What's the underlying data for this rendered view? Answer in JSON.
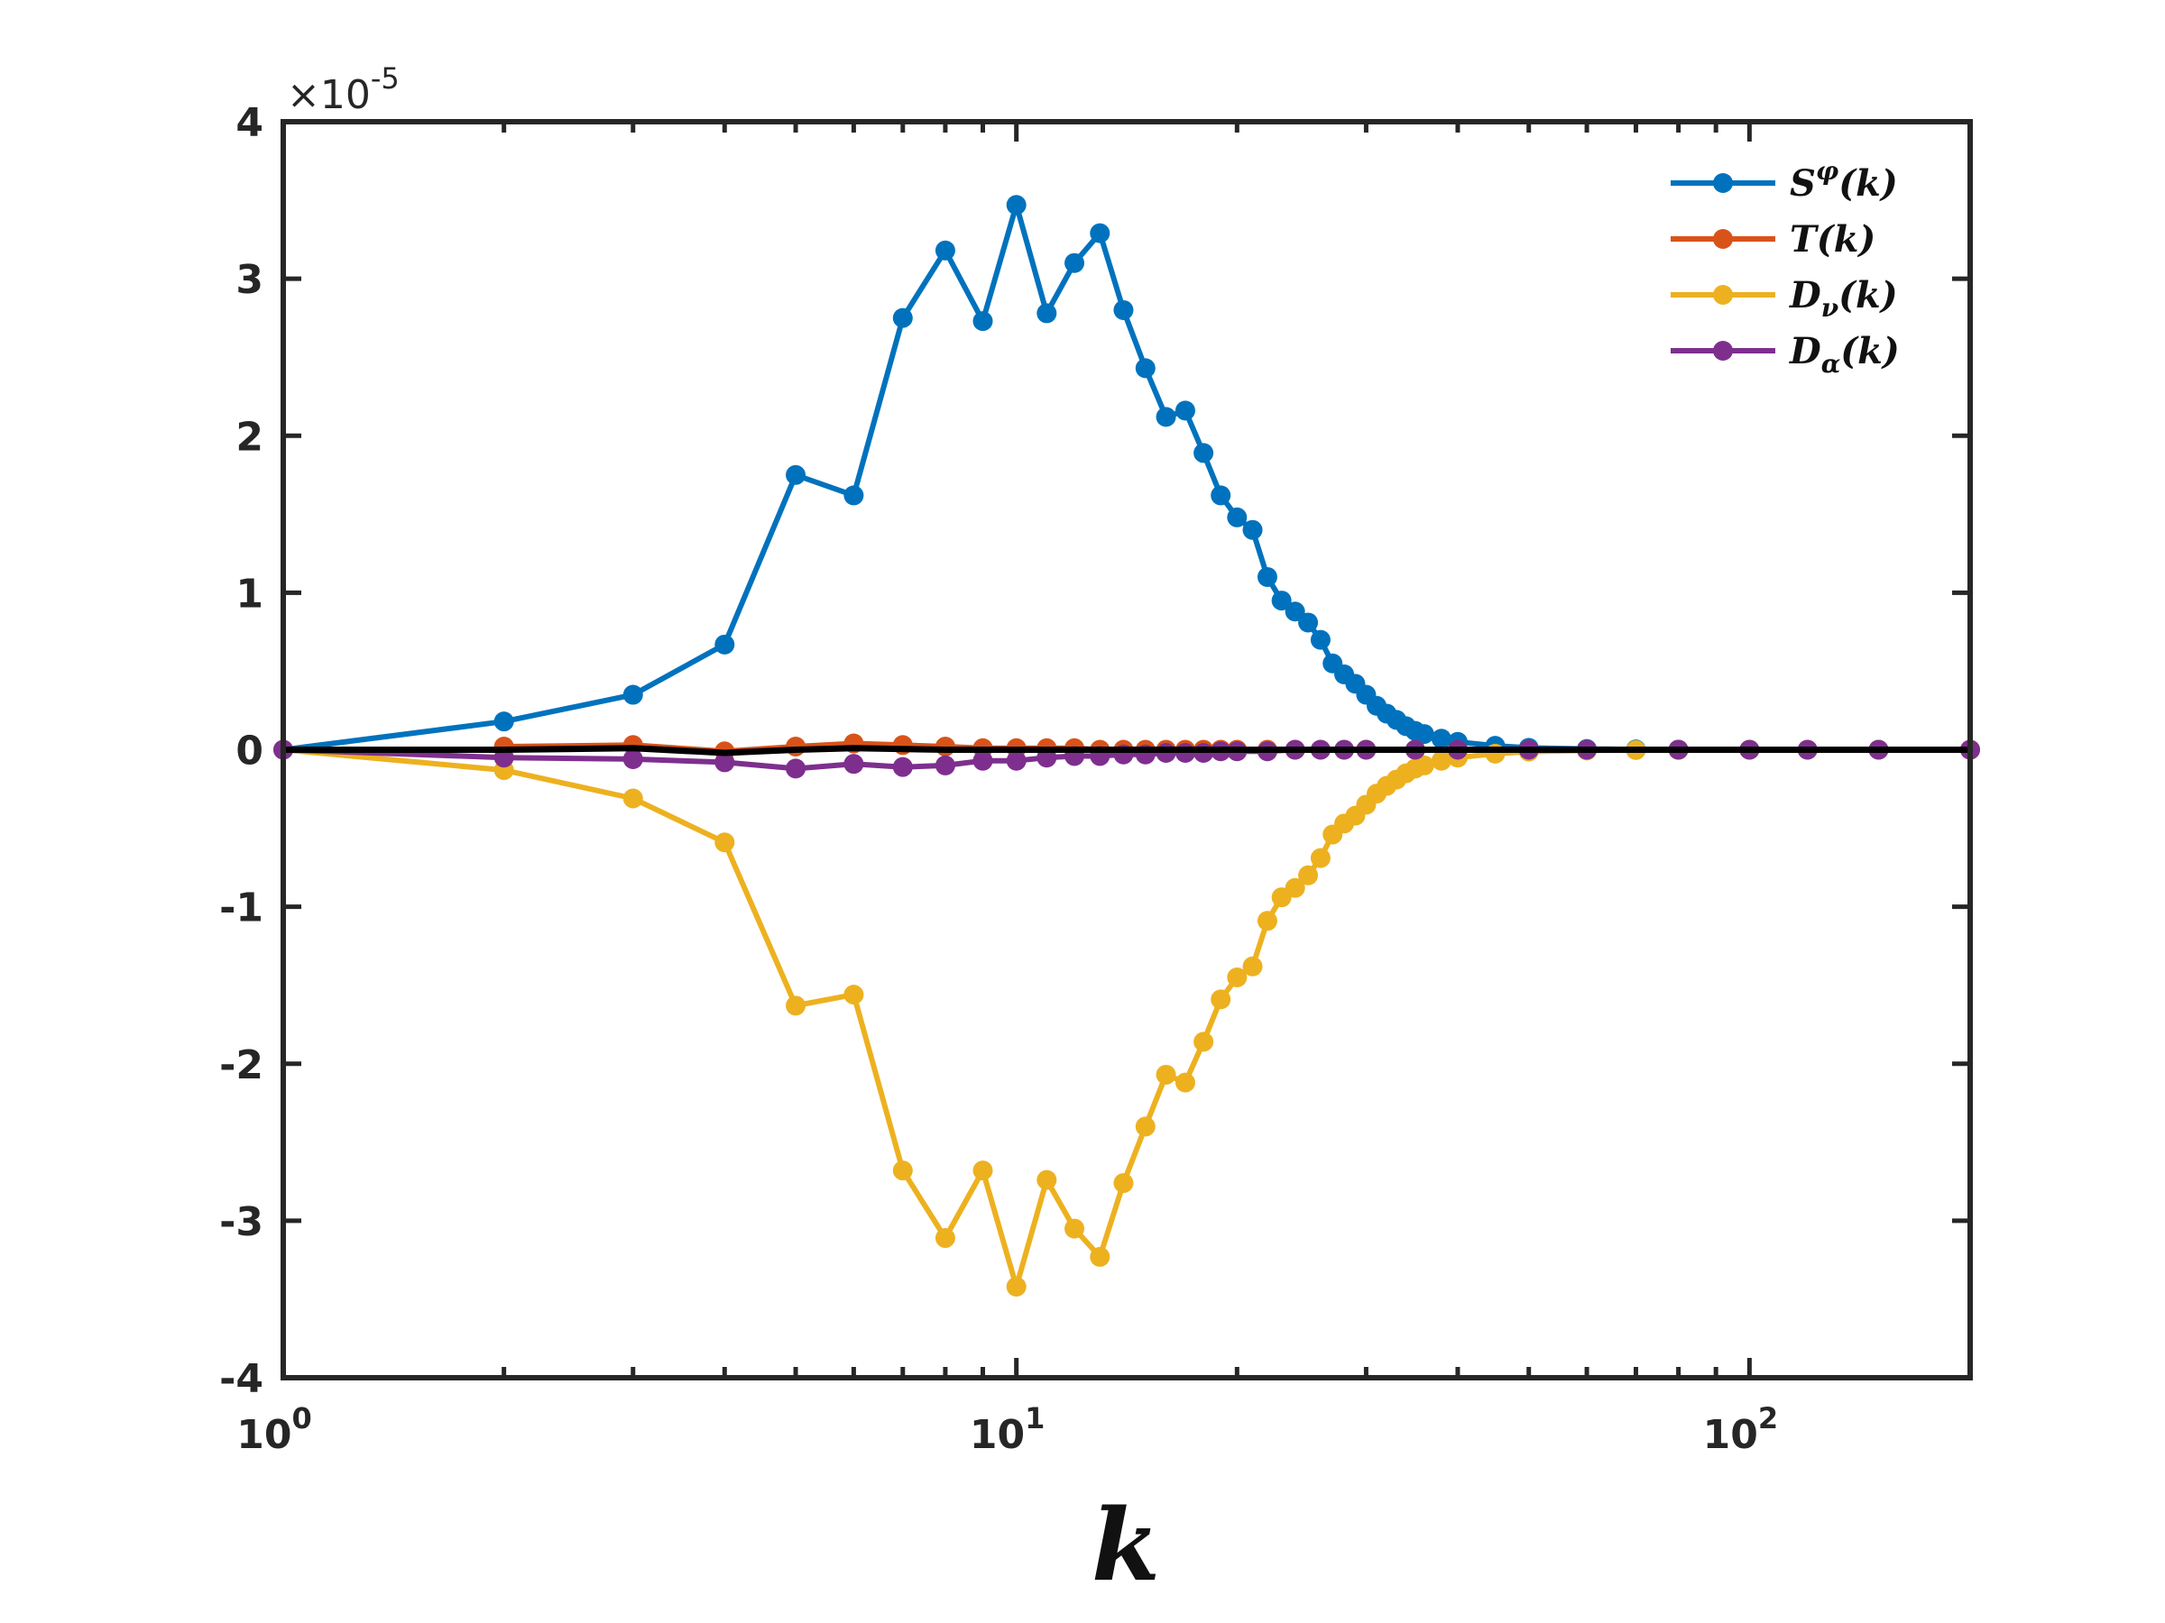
{
  "chart_data": {
    "type": "line",
    "title": "",
    "xlabel": "k",
    "ylabel": "",
    "xscale": "log",
    "xlim": [
      1,
      200
    ],
    "ylim": [
      -4e-05,
      4e-05
    ],
    "y_multiplier": {
      "prefix": "×10",
      "exponent": "-5"
    },
    "xtick_labels": [
      {
        "base": "10",
        "exp": "0",
        "value": 1
      },
      {
        "base": "10",
        "exp": "1",
        "value": 10
      },
      {
        "base": "10",
        "exp": "2",
        "value": 100
      }
    ],
    "ytick_labels": [
      {
        "label": "4",
        "value": 4e-05
      },
      {
        "label": "3",
        "value": 3e-05
      },
      {
        "label": "2",
        "value": 2e-05
      },
      {
        "label": "1",
        "value": 1e-05
      },
      {
        "label": "0",
        "value": 0
      },
      {
        "label": "-1",
        "value": -1e-05
      },
      {
        "label": "-2",
        "value": -2e-05
      },
      {
        "label": "-3",
        "value": -3e-05
      },
      {
        "label": "-4",
        "value": -4e-05
      }
    ],
    "legend_position": "top-right",
    "series": [
      {
        "name": "S^φ(k)",
        "legend": {
          "base": "S",
          "sup": "φ",
          "sub": "",
          "arg": "(k)"
        },
        "color": "#0072BD",
        "x": [
          1,
          2,
          3,
          4,
          5,
          6,
          7,
          8,
          9,
          10,
          11,
          12,
          13,
          14,
          15,
          16,
          17,
          18,
          19,
          20,
          21,
          22,
          23,
          24,
          25,
          26,
          27,
          28,
          29,
          30,
          31,
          32,
          33,
          34,
          35,
          36,
          38,
          40,
          45,
          50,
          60,
          70,
          80,
          100,
          120,
          150,
          200
        ],
        "values": [
          0,
          1.8e-06,
          3.5e-06,
          6.7e-06,
          1.75e-05,
          1.62e-05,
          2.75e-05,
          3.18e-05,
          2.73e-05,
          3.47e-05,
          2.78e-05,
          3.1e-05,
          3.29e-05,
          2.8e-05,
          2.43e-05,
          2.12e-05,
          2.16e-05,
          1.89e-05,
          1.62e-05,
          1.48e-05,
          1.4e-05,
          1.1e-05,
          9.5e-06,
          8.8e-06,
          8.1e-06,
          7e-06,
          5.5e-06,
          4.8e-06,
          4.2e-06,
          3.5e-06,
          2.8e-06,
          2.3e-06,
          1.9e-06,
          1.5e-06,
          1.2e-06,
          1e-06,
          7e-07,
          5e-07,
          2.5e-07,
          1.2e-07,
          5e-08,
          2e-08,
          1e-08,
          0,
          0,
          0,
          0
        ]
      },
      {
        "name": "T(k)",
        "legend": {
          "base": "T",
          "sup": "",
          "sub": "",
          "arg": "(k)"
        },
        "color": "#D95319",
        "x": [
          2,
          3,
          4,
          5,
          6,
          7,
          8,
          9,
          10,
          11,
          12,
          13,
          14,
          15,
          16,
          17,
          18,
          19,
          20,
          22,
          24,
          26,
          28,
          30,
          35,
          40,
          50,
          60,
          80,
          100,
          150,
          200
        ],
        "values": [
          2e-07,
          3e-07,
          -1e-07,
          2e-07,
          4e-07,
          3e-07,
          2e-07,
          1e-07,
          1e-07,
          1e-07,
          1e-07,
          0,
          0,
          0,
          0,
          0,
          0,
          0,
          0,
          0,
          0,
          0,
          0,
          0,
          0,
          0,
          0,
          0,
          0,
          0,
          0,
          0
        ]
      },
      {
        "name": "D_ν(k)",
        "legend": {
          "base": "D",
          "sup": "",
          "sub": "ν",
          "arg": "(k)"
        },
        "color": "#EDB120",
        "x": [
          1,
          2,
          3,
          4,
          5,
          6,
          7,
          8,
          9,
          10,
          11,
          12,
          13,
          14,
          15,
          16,
          17,
          18,
          19,
          20,
          21,
          22,
          23,
          24,
          25,
          26,
          27,
          28,
          29,
          30,
          31,
          32,
          33,
          34,
          35,
          36,
          38,
          40,
          45,
          50,
          60,
          70,
          80,
          100,
          120,
          150,
          200
        ],
        "values": [
          0,
          -1.3e-06,
          -3.1e-06,
          -5.9e-06,
          -1.63e-05,
          -1.56e-05,
          -2.68e-05,
          -3.11e-05,
          -2.68e-05,
          -3.42e-05,
          -2.74e-05,
          -3.05e-05,
          -3.23e-05,
          -2.76e-05,
          -2.4e-05,
          -2.07e-05,
          -2.12e-05,
          -1.86e-05,
          -1.59e-05,
          -1.45e-05,
          -1.38e-05,
          -1.09e-05,
          -9.4e-06,
          -8.8e-06,
          -8e-06,
          -6.9e-06,
          -5.4e-06,
          -4.7e-06,
          -4.2e-06,
          -3.5e-06,
          -2.8e-06,
          -2.3e-06,
          -1.9e-06,
          -1.5e-06,
          -1.2e-06,
          -1e-06,
          -7e-07,
          -5e-07,
          -2.5e-07,
          -1.2e-07,
          -5e-08,
          -2e-08,
          -1e-08,
          0,
          0,
          0,
          0
        ]
      },
      {
        "name": "D_α(k)",
        "legend": {
          "base": "D",
          "sup": "",
          "sub": "α",
          "arg": "(k)"
        },
        "color": "#7E2F8E",
        "x": [
          1,
          2,
          3,
          4,
          5,
          6,
          7,
          8,
          9,
          10,
          11,
          12,
          13,
          14,
          15,
          16,
          17,
          18,
          19,
          20,
          22,
          24,
          26,
          28,
          30,
          35,
          40,
          50,
          60,
          80,
          100,
          120,
          150,
          200
        ],
        "values": [
          0,
          -5e-07,
          -6e-07,
          -8e-07,
          -1.2e-06,
          -9e-07,
          -1.1e-06,
          -1e-06,
          -7e-07,
          -7e-07,
          -5e-07,
          -4e-07,
          -4e-07,
          -3e-07,
          -3e-07,
          -2e-07,
          -2e-07,
          -2e-07,
          -1e-07,
          -1e-07,
          -1e-07,
          0,
          0,
          0,
          0,
          0,
          0,
          0,
          0,
          0,
          0,
          0,
          0,
          0
        ]
      },
      {
        "name": "sum",
        "legend": null,
        "color": "#000000",
        "x": [
          1,
          2,
          3,
          4,
          5,
          6,
          8,
          10,
          15,
          20,
          50,
          100,
          200
        ],
        "values": [
          0,
          0,
          1e-07,
          -2e-07,
          0,
          1e-07,
          0,
          0,
          0,
          0,
          0,
          0,
          0
        ]
      }
    ]
  }
}
